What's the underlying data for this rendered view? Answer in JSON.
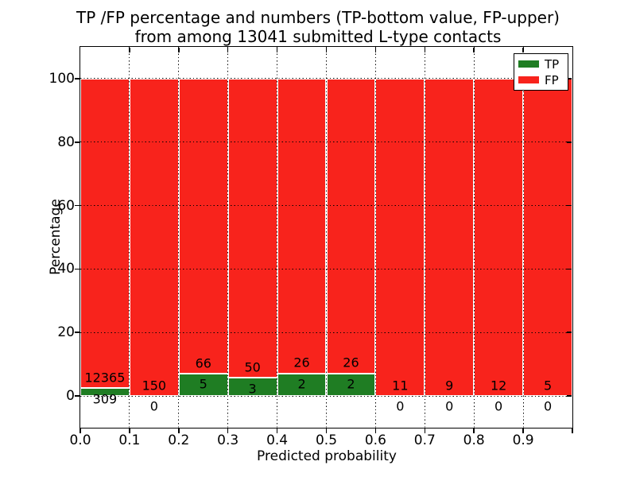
{
  "figure": {
    "title_line1": "TP /FP percentage and numbers (TP-bottom value, FP-upper)",
    "title_line2": "from among 13041 submitted L-type contacts",
    "xlabel": "Predicted probability",
    "ylabel": "Percentage",
    "background_color": "#ffffff"
  },
  "axes": {
    "xlim": [
      0,
      1
    ],
    "ylim": [
      -10,
      110
    ],
    "xtick_values": [
      0,
      0.1,
      0.2,
      0.3,
      0.4,
      0.5,
      0.6,
      0.7,
      0.8,
      0.9
    ],
    "xtick_labels": [
      "0.0",
      "0.1",
      "0.2",
      "0.3",
      "0.4",
      "0.5",
      "0.6",
      "0.7",
      "0.8",
      "0.9"
    ],
    "ytick_values": [
      0,
      20,
      40,
      60,
      80,
      100
    ],
    "ytick_labels": [
      "0",
      "20",
      "40",
      "60",
      "80",
      "100"
    ],
    "grid": "dotted black, horizontal at yticks and vertical at xticks"
  },
  "legend": {
    "position": "upper right",
    "items": [
      {
        "label": "TP",
        "color": "#1f7d23"
      },
      {
        "label": "FP",
        "color": "#f8231c"
      }
    ]
  },
  "colors": {
    "tp_green": "#1f7d23",
    "fp_red": "#f8231c",
    "bar_edge": "#ffffff",
    "spine": "#000000",
    "grid": "#000000",
    "text": "#000000"
  },
  "chart_data": {
    "type": "bar",
    "stacked": true,
    "normalized_per_bar_to": 100,
    "title": "TP /FP percentage and numbers (TP-bottom value, FP-upper) from among 13041 submitted L-type contacts",
    "xlabel": "Predicted probability",
    "ylabel": "Percentage",
    "xlim": [
      0,
      1
    ],
    "ylim": [
      -10,
      110
    ],
    "grid": true,
    "legend_position": "upper right",
    "total_contacts": 13041,
    "bin_width": 0.1,
    "bin_edges": [
      0.0,
      0.1,
      0.2,
      0.3,
      0.4,
      0.5,
      0.6,
      0.7,
      0.8,
      0.9,
      1.0
    ],
    "categories": [
      "0.0-0.1",
      "0.1-0.2",
      "0.2-0.3",
      "0.3-0.4",
      "0.4-0.5",
      "0.5-0.6",
      "0.6-0.7",
      "0.7-0.8",
      "0.8-0.9",
      "0.9-1.0"
    ],
    "series": [
      {
        "name": "TP",
        "color": "#1f7d23",
        "counts": [
          309,
          0,
          5,
          3,
          2,
          2,
          0,
          0,
          0,
          0
        ]
      },
      {
        "name": "FP",
        "color": "#f8231c",
        "counts": [
          12365,
          150,
          66,
          50,
          26,
          26,
          11,
          9,
          12,
          5
        ]
      }
    ],
    "tp_percent_of_bar": [
      2.44,
      0.0,
      7.04,
      5.66,
      7.14,
      7.14,
      0.0,
      0.0,
      0.0,
      0.0
    ],
    "fp_percent_of_bar": [
      97.56,
      100.0,
      92.96,
      94.34,
      92.86,
      92.86,
      100.0,
      100.0,
      100.0,
      100.0
    ],
    "value_label_rule": "FP count printed just above green segment top, TP count printed just below green segment top"
  }
}
